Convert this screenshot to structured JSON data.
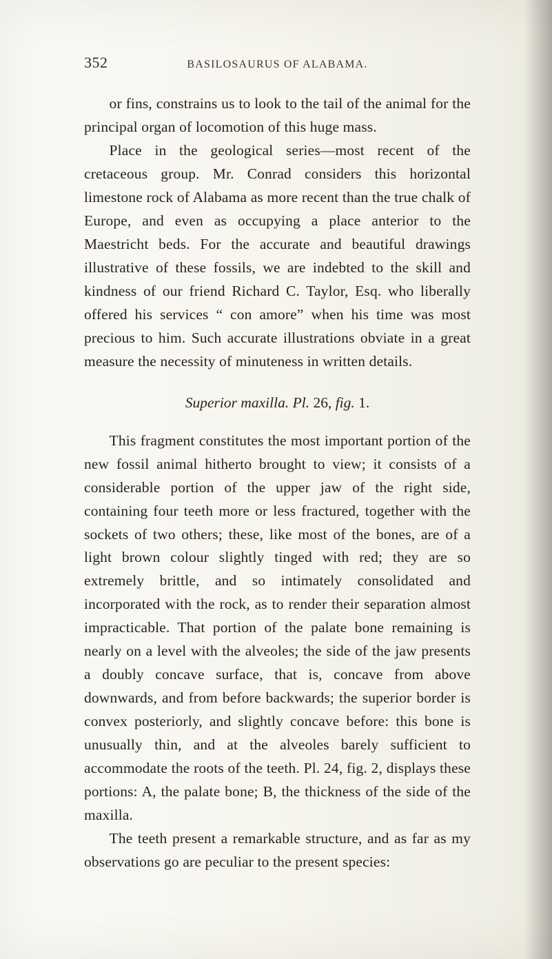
{
  "page": {
    "number": "352",
    "running_head": "BASILOSAURUS OF ALABAMA.",
    "background_gradient": [
      "#fafaf6",
      "#f6f5ee",
      "#eeede2"
    ],
    "text_color": "#27231c",
    "font_family": "Times New Roman",
    "body_fontsize_pt": 16,
    "line_height": 1.58,
    "para1": "or fins, constrains us to look to the tail of the animal for the principal organ of locomotion of this huge mass.",
    "para2": "Place in the geological series—most recent of the cretaceous group. Mr. Conrad considers this horizontal limestone rock of Alabama as more recent than the true chalk of Europe, and even as occupying a place anterior to the Maestricht beds. For the accurate and beautiful drawings illustrative of these fossils, we are indebted to the skill and kindness of our friend Richard C. Taylor, Esq. who liberally offered his services “ con amore” when his time was most precious to him. Such accurate illustrations obviate in a great measure the necessity of minuteness in written details.",
    "section_title_italic": "Superior maxilla.   Pl. ",
    "section_title_upright": "26, ",
    "section_title_italic2": "fig. ",
    "section_title_upright2": "1.",
    "para3": "This fragment constitutes the most important portion of the new fossil animal hitherto brought to view; it consists of a considerable portion of the upper jaw of the right side, containing four teeth more or less fractured, together with the sockets of two others; these, like most of the bones, are of a light brown colour slightly tinged with red; they are so extremely brittle, and so intimately consolidated and incorporated with the rock, as to render their separation almost impracticable. That portion of the palate bone remaining is nearly on a level with the alveoles; the side of the jaw presents a doubly concave surface, that is, concave from above downwards, and from before backwards; the superior border is convex posteriorly, and slightly concave before: this bone is unusually thin, and at the alveoles barely sufficient to accommodate the roots of the teeth. Pl. 24, fig. 2, displays these portions: A, the palate bone; B, the thickness of the side of the maxilla.",
    "para4": "The teeth present a remarkable structure, and as far as my observations go are peculiar to the present species:"
  }
}
